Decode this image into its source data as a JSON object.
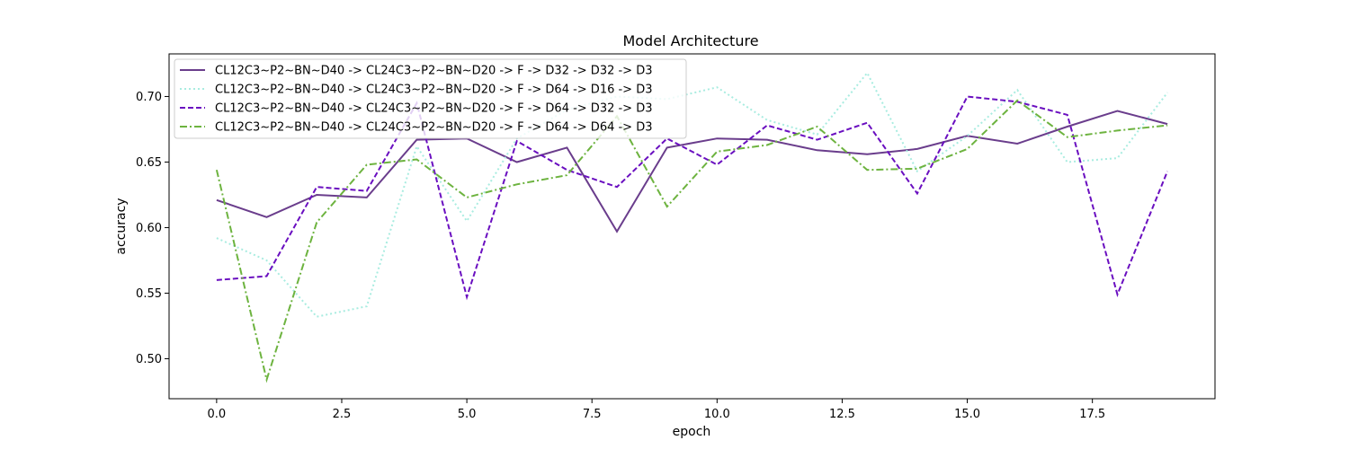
{
  "chart_data": {
    "type": "line",
    "title": "Model Architecture",
    "xlabel": "epoch",
    "ylabel": "accuracy",
    "xlim": [
      -0.95,
      19.95
    ],
    "ylim": [
      0.4695,
      0.7325
    ],
    "xticks": [
      0.0,
      2.5,
      5.0,
      7.5,
      10.0,
      12.5,
      15.0,
      17.5
    ],
    "xtick_labels": [
      "0.0",
      "2.5",
      "5.0",
      "7.5",
      "10.0",
      "12.5",
      "15.0",
      "17.5"
    ],
    "yticks": [
      0.5,
      0.55,
      0.6,
      0.65,
      0.7
    ],
    "ytick_labels": [
      "0.50",
      "0.55",
      "0.60",
      "0.65",
      "0.70"
    ],
    "grid": false,
    "legend_position": "top-left",
    "x": [
      0,
      1,
      2,
      3,
      4,
      5,
      6,
      7,
      8,
      9,
      10,
      11,
      12,
      13,
      14,
      15,
      16,
      17,
      18,
      19
    ],
    "series": [
      {
        "name": "CL12C3~P2~BN~D40 -> CL24C3~P2~BN~D20 -> F -> D32 -> D32 -> D3",
        "color": "#6a3d8c",
        "style": "solid",
        "values": [
          0.621,
          0.608,
          0.625,
          0.623,
          0.667,
          0.668,
          0.65,
          0.661,
          0.597,
          0.661,
          0.668,
          0.667,
          0.659,
          0.656,
          0.66,
          0.67,
          0.664,
          0.677,
          0.689,
          0.679
        ]
      },
      {
        "name": "CL12C3~P2~BN~D40 -> CL24C3~P2~BN~D20 -> F -> D64 -> D16 -> D3",
        "color": "#a8ece0",
        "style": "dotted",
        "values": [
          0.592,
          0.575,
          0.532,
          0.54,
          0.662,
          0.605,
          0.668,
          0.69,
          0.7,
          0.698,
          0.707,
          0.682,
          0.671,
          0.718,
          0.643,
          0.67,
          0.705,
          0.65,
          0.653,
          0.703
        ]
      },
      {
        "name": "CL12C3~P2~BN~D40 -> CL24C3~P2~BN~D20 -> F -> D64 -> D32 -> D3",
        "color": "#6a0fc0",
        "style": "dashed",
        "values": [
          0.56,
          0.563,
          0.631,
          0.628,
          0.695,
          0.547,
          0.666,
          0.644,
          0.631,
          0.668,
          0.648,
          0.678,
          0.667,
          0.68,
          0.626,
          0.7,
          0.696,
          0.686,
          0.549,
          0.643
        ]
      },
      {
        "name": "CL12C3~P2~BN~D40 -> CL24C3~P2~BN~D20 -> F -> D64 -> D64 -> D3",
        "color": "#6db33f",
        "style": "dashdot",
        "values": [
          0.644,
          0.484,
          0.604,
          0.648,
          0.652,
          0.623,
          0.633,
          0.64,
          0.685,
          0.616,
          0.658,
          0.663,
          0.677,
          0.644,
          0.645,
          0.66,
          0.697,
          0.669,
          0.674,
          0.678
        ]
      }
    ]
  }
}
